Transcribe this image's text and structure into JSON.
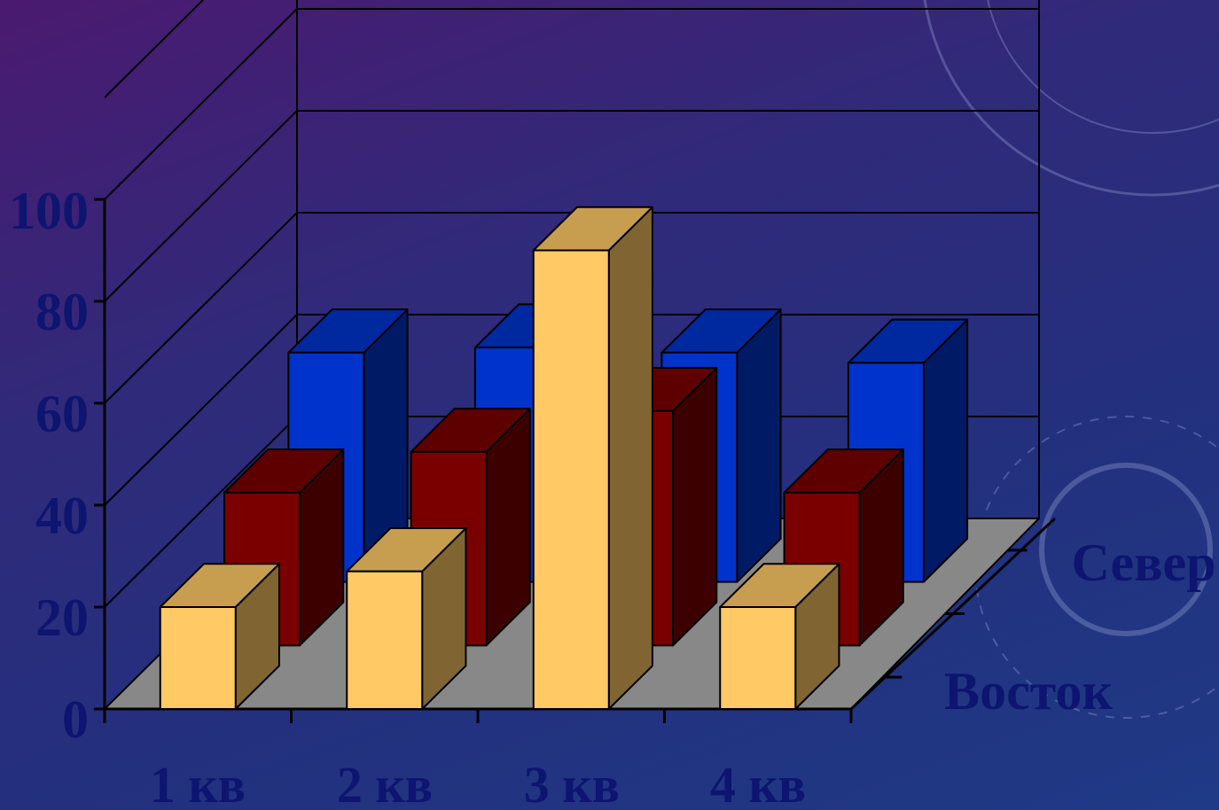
{
  "chart_data": {
    "type": "bar",
    "style": "3d-bar",
    "categories": [
      "1 кв",
      "2 кв",
      "3 кв",
      "4 кв"
    ],
    "depth_labels": [
      "Восток",
      "Север"
    ],
    "series": [
      {
        "name": "Восток",
        "values": [
          20,
          27,
          90,
          20
        ],
        "color": "#ffc966"
      },
      {
        "name": "",
        "values": [
          30,
          38,
          46,
          30
        ],
        "color": "#7a0000"
      },
      {
        "name": "Север",
        "values": [
          45,
          46,
          45,
          43
        ],
        "color": "#0033cc"
      }
    ],
    "yticks": [
      "0",
      "20",
      "40",
      "60",
      "80",
      "100"
    ],
    "ylim": [
      0,
      100
    ],
    "grid": true
  }
}
